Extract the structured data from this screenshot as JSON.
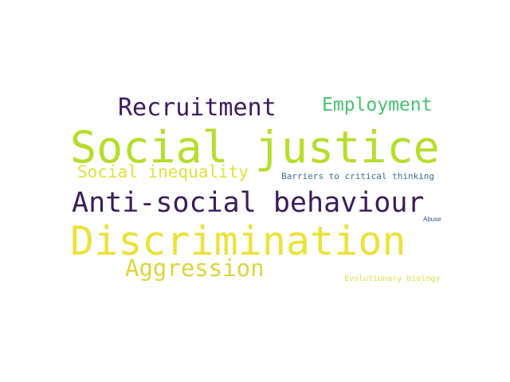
{
  "word_cloud": {
    "words": {
      "recruitment": {
        "text": "Recruitment",
        "color": "#3e1a5f"
      },
      "employment": {
        "text": "Employment",
        "color": "#48c172"
      },
      "social_justice": {
        "text": "Social justice",
        "color": "#b6de2b"
      },
      "social_inequality": {
        "text": "Social inequality",
        "color": "#dfe33a"
      },
      "barriers": {
        "text": "Barriers to critical thinking",
        "color": "#3b6f8f"
      },
      "anti_social": {
        "text": "Anti-social behaviour",
        "color": "#3a1c5c"
      },
      "abuse": {
        "text": "Abuse",
        "color": "#3a4f8a"
      },
      "discrimination": {
        "text": "Discrimination",
        "color": "#ece23a"
      },
      "aggression": {
        "text": "Aggression",
        "color": "#ded53a"
      },
      "evolutionary": {
        "text": "Evolutionary biology",
        "color": "#dfdf4a"
      }
    }
  }
}
